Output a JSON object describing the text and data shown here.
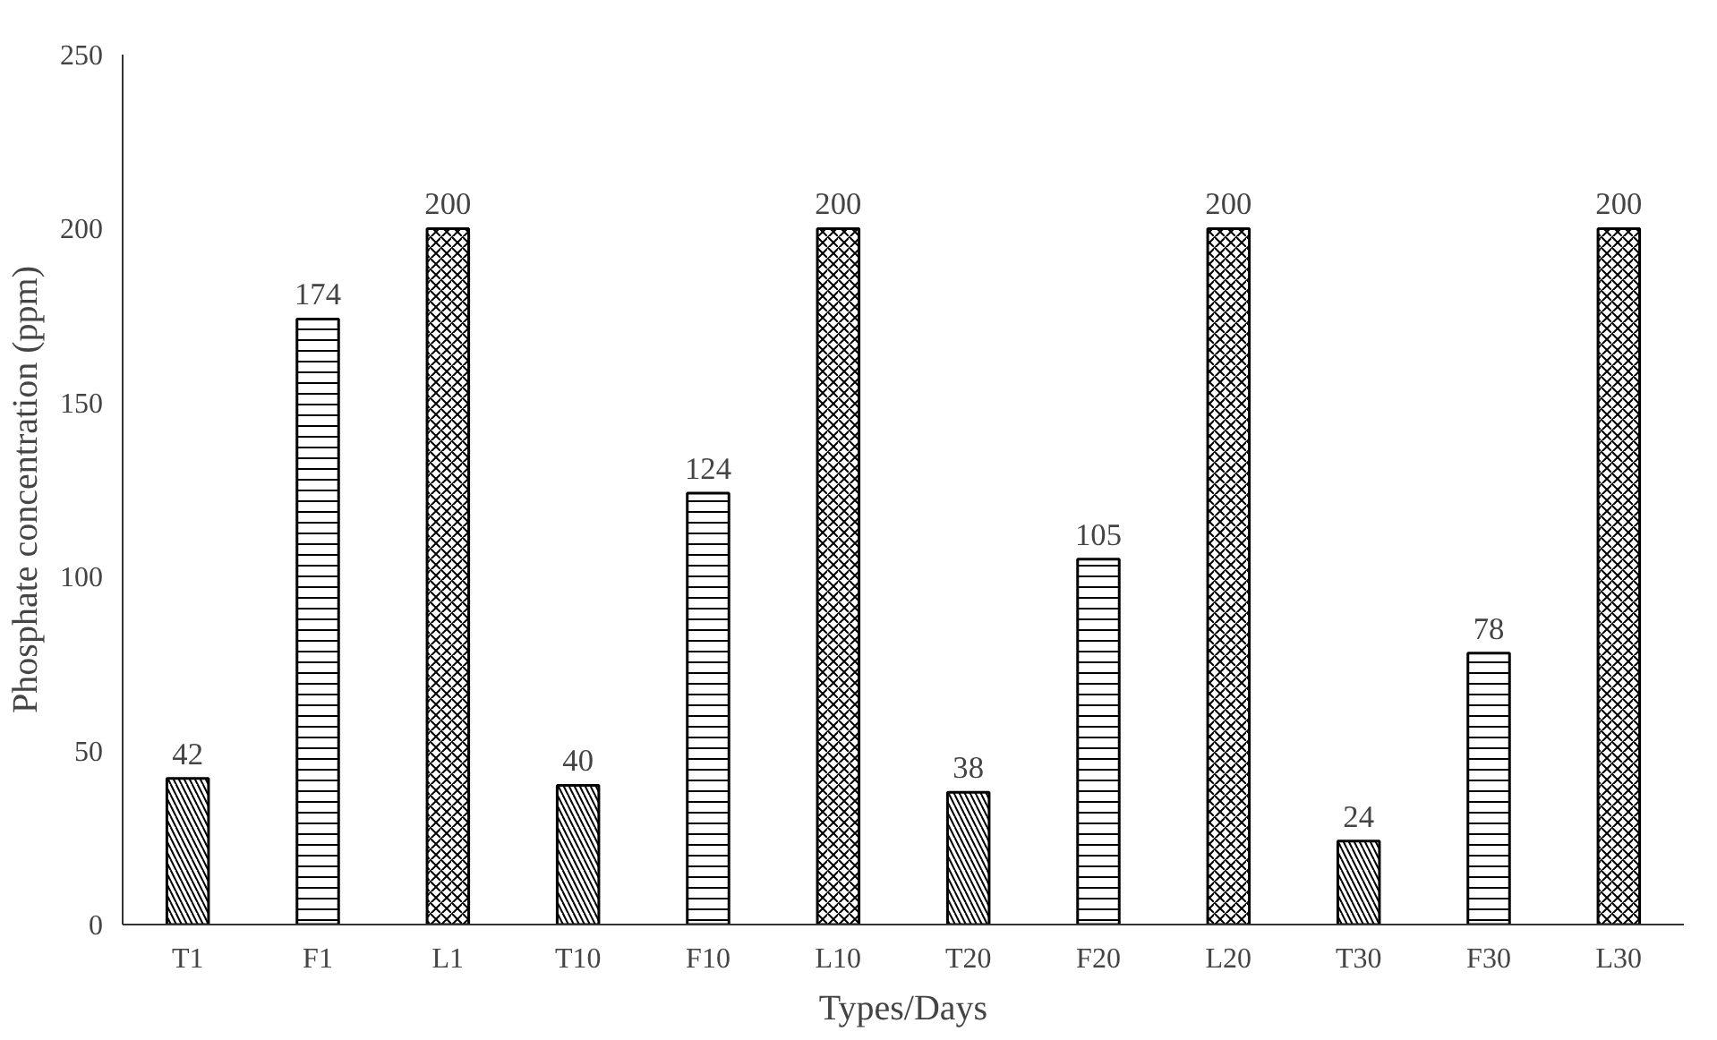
{
  "chart_data": {
    "type": "bar",
    "xlabel": "Types/Days",
    "ylabel": "Phosphate concentration (ppm)",
    "categories": [
      "T1",
      "F1",
      "L1",
      "T10",
      "F10",
      "L10",
      "T20",
      "F20",
      "L20",
      "T30",
      "F30",
      "L30"
    ],
    "values": [
      42,
      174,
      200,
      40,
      124,
      200,
      38,
      105,
      200,
      24,
      78,
      200
    ],
    "color": "#ffffff",
    "ylim": [
      0,
      250
    ],
    "yticks": [
      0,
      50,
      100,
      150,
      200,
      250
    ],
    "grid": false,
    "data_labels": true
  }
}
